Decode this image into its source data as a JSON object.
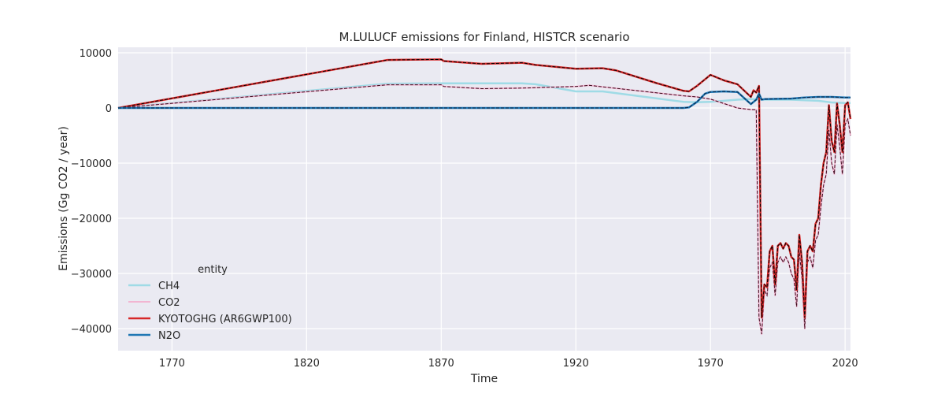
{
  "chart_data": {
    "type": "line",
    "title": "M.LULUCF emissions for Finland, HISTCR scenario",
    "xlabel": "Time",
    "ylabel": "Emissions (Gg CO2 / year)",
    "xlim": [
      1750,
      2022
    ],
    "ylim": [
      -44000,
      11000
    ],
    "xticks": [
      1770,
      1820,
      1870,
      1920,
      1970,
      2020
    ],
    "yticks": [
      10000,
      0,
      -10000,
      -20000,
      -30000,
      -40000
    ],
    "ytick_labels": [
      "10000",
      "0",
      "−10000",
      "−20000",
      "−30000",
      "−40000"
    ],
    "grid": true,
    "background": "#eaeaf2",
    "legend": {
      "title": "entity",
      "placement": "lower-left"
    },
    "series": [
      {
        "name": "CH4",
        "color": "#9fdbe6",
        "width": 2.5,
        "x": [
          1750,
          1850,
          1870,
          1900,
          1905,
          1920,
          1930,
          1960,
          1965,
          1970,
          1980,
          1985,
          1990,
          2000,
          2010,
          2015,
          2020,
          2022
        ],
        "y": [
          0,
          4400,
          4450,
          4450,
          4300,
          3000,
          3000,
          1100,
          1050,
          1100,
          1500,
          1600,
          1500,
          1500,
          1300,
          1000,
          900,
          900
        ]
      },
      {
        "name": "CO2",
        "color": "#f2b6d2",
        "width": 2,
        "dashed_overlay": "#3b0a1a",
        "x": [
          1750,
          1850,
          1870,
          1871,
          1885,
          1900,
          1920,
          1925,
          1960,
          1965,
          1970,
          1980,
          1985,
          1987,
          1988,
          1989,
          1990,
          1991,
          1992,
          1993,
          1994,
          1995,
          1996,
          1997,
          1998,
          1999,
          2000,
          2001,
          2002,
          2003,
          2004,
          2005,
          2006,
          2007,
          2008,
          2009,
          2010,
          2011,
          2012,
          2013,
          2014,
          2015,
          2016,
          2017,
          2018,
          2019,
          2020,
          2021,
          2022
        ],
        "y": [
          0,
          4200,
          4200,
          3900,
          3500,
          3600,
          3900,
          4100,
          2200,
          2000,
          1600,
          0,
          -300,
          -300,
          -38000,
          -41000,
          -33000,
          -34000,
          -29000,
          -28000,
          -34000,
          -28000,
          -27000,
          -28000,
          -27000,
          -28000,
          -30000,
          -31000,
          -36000,
          -26000,
          -31000,
          -40000,
          -28000,
          -27000,
          -29000,
          -24000,
          -23000,
          -18000,
          -14000,
          -12000,
          -4000,
          -10000,
          -12000,
          -3000,
          -7000,
          -12000,
          -3000,
          -2000,
          -5000
        ]
      },
      {
        "name": "KYOTOGHG (AR6GWP100)",
        "color": "#d62728",
        "width": 2.5,
        "dashed_overlay": "#000000",
        "x": [
          1750,
          1850,
          1870,
          1871,
          1885,
          1900,
          1905,
          1920,
          1930,
          1935,
          1950,
          1960,
          1962,
          1965,
          1970,
          1975,
          1980,
          1985,
          1986,
          1987,
          1988,
          1989,
          1990,
          1991,
          1992,
          1993,
          1994,
          1995,
          1996,
          1997,
          1998,
          1999,
          2000,
          2001,
          2002,
          2003,
          2004,
          2005,
          2006,
          2007,
          2008,
          2009,
          2010,
          2011,
          2012,
          2013,
          2014,
          2015,
          2016,
          2017,
          2018,
          2019,
          2020,
          2021,
          2022
        ],
        "y": [
          0,
          8700,
          8800,
          8500,
          8000,
          8200,
          7800,
          7100,
          7200,
          6800,
          4500,
          3100,
          3000,
          4000,
          6000,
          5000,
          4300,
          2000,
          3200,
          2800,
          4000,
          -38000,
          -32000,
          -32500,
          -26000,
          -25000,
          -32000,
          -25000,
          -24500,
          -25500,
          -24500,
          -25000,
          -27000,
          -27500,
          -33000,
          -23000,
          -28000,
          -38000,
          -26000,
          -25000,
          -26000,
          -21000,
          -20000,
          -14000,
          -10000,
          -8000,
          500,
          -6000,
          -8000,
          800,
          -3000,
          -8000,
          500,
          1000,
          -2000
        ]
      },
      {
        "name": "N2O",
        "color": "#1f77b4",
        "width": 2.5,
        "dashed_overlay": "#0b2545",
        "x": [
          1750,
          1960,
          1962,
          1965,
          1968,
          1970,
          1975,
          1980,
          1985,
          1987,
          1988,
          1989,
          1990,
          2000,
          2005,
          2010,
          2015,
          2020,
          2022
        ],
        "y": [
          0,
          0,
          100,
          1100,
          2600,
          2900,
          3000,
          2900,
          700,
          1500,
          2600,
          1500,
          1600,
          1700,
          1900,
          2000,
          2000,
          1900,
          1900
        ]
      }
    ]
  }
}
